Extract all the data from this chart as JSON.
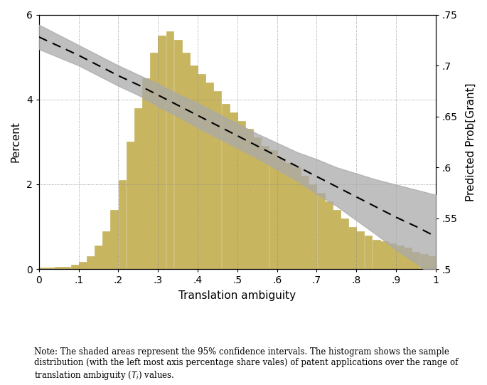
{
  "xlabel": "Translation ambiguity",
  "ylabel_left": "Percent",
  "ylabel_right": "Predicted Prob[Grant]",
  "xlim": [
    0,
    1
  ],
  "ylim_left": [
    0,
    6
  ],
  "ylim_right": [
    0.5,
    0.75
  ],
  "xticks": [
    0,
    0.1,
    0.2,
    0.3,
    0.4,
    0.5,
    0.6,
    0.7,
    0.8,
    0.9,
    1.0
  ],
  "xtick_labels": [
    "0",
    ".1",
    ".2",
    ".3",
    ".4",
    ".5",
    ".6",
    ".7",
    ".8",
    ".9",
    "1"
  ],
  "yticks_right": [
    0.5,
    0.55,
    0.6,
    0.65,
    0.7,
    0.75
  ],
  "ytick_labels_right": [
    ".5",
    ".55",
    ".6",
    ".65",
    ".7",
    ".75"
  ],
  "yticks_left": [
    0,
    2,
    4,
    6
  ],
  "ytick_labels_left": [
    "0",
    "2",
    "4",
    "6"
  ],
  "line_x": [
    0.0,
    0.05,
    0.1,
    0.15,
    0.2,
    0.25,
    0.3,
    0.35,
    0.4,
    0.45,
    0.5,
    0.55,
    0.6,
    0.65,
    0.7,
    0.75,
    0.8,
    0.85,
    0.9,
    0.95,
    1.0
  ],
  "line_y": [
    0.728,
    0.719,
    0.71,
    0.7,
    0.69,
    0.681,
    0.671,
    0.661,
    0.651,
    0.641,
    0.631,
    0.621,
    0.611,
    0.601,
    0.591,
    0.581,
    0.571,
    0.561,
    0.551,
    0.542,
    0.532
  ],
  "ci_upper": [
    0.74,
    0.73,
    0.72,
    0.71,
    0.7,
    0.691,
    0.682,
    0.672,
    0.663,
    0.653,
    0.643,
    0.633,
    0.624,
    0.615,
    0.608,
    0.6,
    0.594,
    0.588,
    0.583,
    0.578,
    0.573
  ],
  "ci_lower": [
    0.716,
    0.708,
    0.7,
    0.69,
    0.68,
    0.671,
    0.66,
    0.65,
    0.639,
    0.629,
    0.619,
    0.609,
    0.598,
    0.587,
    0.574,
    0.562,
    0.548,
    0.534,
    0.519,
    0.506,
    0.491
  ],
  "hist_bin_left": [
    0.0,
    0.02,
    0.04,
    0.06,
    0.08,
    0.1,
    0.12,
    0.14,
    0.16,
    0.18,
    0.2,
    0.22,
    0.24,
    0.26,
    0.28,
    0.3,
    0.32,
    0.34,
    0.36,
    0.38,
    0.4,
    0.42,
    0.44,
    0.46,
    0.48,
    0.5,
    0.52,
    0.54,
    0.56,
    0.58,
    0.6,
    0.62,
    0.64,
    0.66,
    0.68,
    0.7,
    0.72,
    0.74,
    0.76,
    0.78,
    0.8,
    0.82,
    0.84,
    0.86,
    0.88,
    0.9,
    0.92,
    0.94,
    0.96,
    0.98
  ],
  "hist_heights": [
    0.03,
    0.03,
    0.05,
    0.05,
    0.1,
    0.18,
    0.3,
    0.55,
    0.9,
    1.4,
    2.1,
    3.0,
    3.8,
    4.5,
    5.1,
    5.5,
    5.6,
    5.4,
    5.1,
    4.8,
    4.6,
    4.4,
    4.2,
    3.9,
    3.7,
    3.5,
    3.3,
    3.1,
    2.9,
    2.8,
    2.6,
    2.5,
    2.4,
    2.2,
    2.0,
    1.8,
    1.6,
    1.4,
    1.2,
    1.0,
    0.9,
    0.8,
    0.7,
    0.65,
    0.6,
    0.55,
    0.5,
    0.4,
    0.35,
    0.3
  ],
  "hist_bar_width": 0.02,
  "hist_color": "#c8b560",
  "hist_edgecolor": "#c8b560",
  "ci_color": "#aaaaaa",
  "line_color": "#000000",
  "background_color": "#ffffff",
  "note_text": "Note: The shaded areas represent the 95% confidence intervals. The histogram shows the sample\ndistribution (with the left most axis percentage share vales) of patent applications over the range of\ntranslation ambiguity ($T_i$) values."
}
